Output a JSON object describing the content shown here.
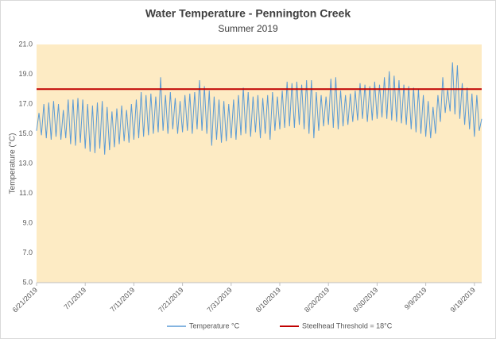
{
  "chart_data": {
    "type": "line",
    "title": "Water Temperature - Pennington Creek",
    "subtitle": "Summer 2019",
    "y_label": "Temperature (°C)",
    "ylim": [
      5,
      21
    ],
    "yticks": [
      {
        "value": 5,
        "label": "5.0"
      },
      {
        "value": 7,
        "label": "7.0"
      },
      {
        "value": 9,
        "label": "9.0"
      },
      {
        "value": 11,
        "label": "11.0"
      },
      {
        "value": 13,
        "label": "13.0"
      },
      {
        "value": 15,
        "label": "15.0"
      },
      {
        "value": 17,
        "label": "17.0"
      },
      {
        "value": 19,
        "label": "19.0"
      },
      {
        "value": 21,
        "label": "21.0"
      }
    ],
    "grid": false,
    "background": "#fdebc4",
    "categories": [
      "6/21/2019",
      null,
      null,
      null,
      null,
      null,
      null,
      null,
      null,
      null,
      null,
      null,
      null,
      null,
      null,
      null,
      null,
      null,
      null,
      null,
      "7/1/2019",
      null,
      null,
      null,
      null,
      null,
      null,
      null,
      null,
      null,
      null,
      null,
      null,
      null,
      null,
      null,
      null,
      null,
      null,
      null,
      "7/11/2019",
      null,
      null,
      null,
      null,
      null,
      null,
      null,
      null,
      null,
      null,
      null,
      null,
      null,
      null,
      null,
      null,
      null,
      null,
      null,
      "7/21/2019",
      null,
      null,
      null,
      null,
      null,
      null,
      null,
      null,
      null,
      null,
      null,
      null,
      null,
      null,
      null,
      null,
      null,
      null,
      null,
      "7/31/2019",
      null,
      null,
      null,
      null,
      null,
      null,
      null,
      null,
      null,
      null,
      null,
      null,
      null,
      null,
      null,
      null,
      null,
      null,
      null,
      "8/10/2019",
      null,
      null,
      null,
      null,
      null,
      null,
      null,
      null,
      null,
      null,
      null,
      null,
      null,
      null,
      null,
      null,
      null,
      null,
      null,
      "8/20/2019",
      null,
      null,
      null,
      null,
      null,
      null,
      null,
      null,
      null,
      null,
      null,
      null,
      null,
      null,
      null,
      null,
      null,
      null,
      null,
      "8/30/2019",
      null,
      null,
      null,
      null,
      null,
      null,
      null,
      null,
      null,
      null,
      null,
      null,
      null,
      null,
      null,
      null,
      null,
      null,
      null,
      "9/9/2019",
      null,
      null,
      null,
      null,
      null,
      null,
      null,
      null,
      null,
      null,
      null,
      null,
      null,
      null,
      null,
      null,
      null,
      null,
      null,
      "9/19/2019",
      null,
      null,
      null
    ],
    "series": [
      {
        "name": "Temperature °C",
        "color": "#5b9bd5",
        "values": [
          15.2,
          16.4,
          14.9,
          17.0,
          14.7,
          17.1,
          14.6,
          17.2,
          14.8,
          17.0,
          14.6,
          16.6,
          14.7,
          17.3,
          14.3,
          17.3,
          14.2,
          17.4,
          14.4,
          17.3,
          14.0,
          17.0,
          13.8,
          16.9,
          13.7,
          17.1,
          14.0,
          17.2,
          13.6,
          16.8,
          13.9,
          16.5,
          14.1,
          16.7,
          14.3,
          16.9,
          14.5,
          16.6,
          14.4,
          17.0,
          14.6,
          17.3,
          14.7,
          17.8,
          14.8,
          17.6,
          14.9,
          17.7,
          15.0,
          17.5,
          15.1,
          18.8,
          15.2,
          17.6,
          15.0,
          17.8,
          15.3,
          17.4,
          15.0,
          17.2,
          15.1,
          17.6,
          15.2,
          17.7,
          15.0,
          17.8,
          15.3,
          18.6,
          15.2,
          18.2,
          15.0,
          17.9,
          14.2,
          17.5,
          14.6,
          17.3,
          14.4,
          17.2,
          14.5,
          17.0,
          14.7,
          17.3,
          14.6,
          17.6,
          14.9,
          18.1,
          15.0,
          17.8,
          14.8,
          17.5,
          15.1,
          17.6,
          14.7,
          17.4,
          15.0,
          17.6,
          14.6,
          17.8,
          15.2,
          17.5,
          15.3,
          17.9,
          15.4,
          18.5,
          15.5,
          18.4,
          15.4,
          18.5,
          15.6,
          18.3,
          15.3,
          18.6,
          15.0,
          18.6,
          14.7,
          17.8,
          15.2,
          17.6,
          15.5,
          17.5,
          15.6,
          18.7,
          15.4,
          18.8,
          15.3,
          17.9,
          15.5,
          17.6,
          15.6,
          17.7,
          15.8,
          17.9,
          15.9,
          18.4,
          16.0,
          18.3,
          15.8,
          18.2,
          15.9,
          18.5,
          16.0,
          18.3,
          16.1,
          18.8,
          16.0,
          19.2,
          15.9,
          18.9,
          15.8,
          18.6,
          15.7,
          18.3,
          15.6,
          18.2,
          15.3,
          18.1,
          15.1,
          18.0,
          15.0,
          17.6,
          14.8,
          17.2,
          14.7,
          16.8,
          15.0,
          17.6,
          15.8,
          18.8,
          16.4,
          18.0,
          16.5,
          19.8,
          16.3,
          19.6,
          16.0,
          18.4,
          15.6,
          18.1,
          15.3,
          17.7,
          14.8,
          17.6,
          15.2,
          16.0
        ]
      }
    ],
    "threshold": {
      "name": "Steelhead Threshold = 18°C",
      "value": 18,
      "color": "#c00000"
    }
  }
}
